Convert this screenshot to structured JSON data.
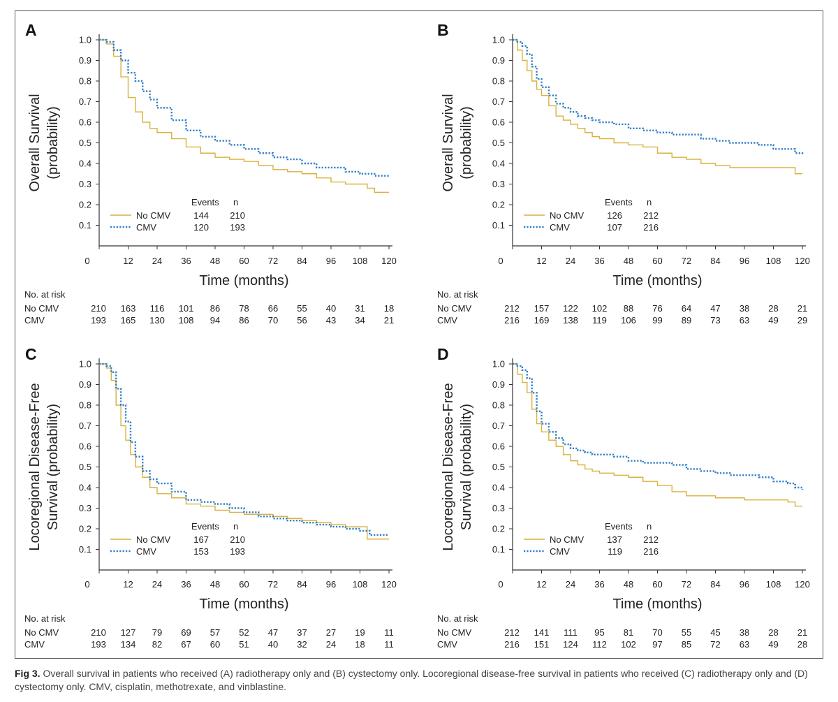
{
  "caption": {
    "label": "Fig 3.",
    "text": " Overall survival in patients who received (A) radiotherapy only and (B) cystectomy only. Locoregional disease-free survival in patients who received (C) radiotherapy only and (D) cystectomy only. CMV, cisplatin, methotrexate, and vinblastine."
  },
  "chart_data": [
    {
      "panel": "A",
      "type": "line",
      "xlabel": "Time (months)",
      "ylabel": [
        "Overall Survival",
        "(probability)"
      ],
      "xlim": [
        0,
        120
      ],
      "ylim": [
        0,
        1.0
      ],
      "xticks": [
        0,
        12,
        24,
        36,
        48,
        60,
        72,
        84,
        96,
        108,
        120
      ],
      "yticks": [
        0.1,
        0.2,
        0.3,
        0.4,
        0.5,
        0.6,
        0.7,
        0.8,
        0.9,
        1.0
      ],
      "legend_header": [
        "Events",
        "n"
      ],
      "series": [
        {
          "name": "No CMV",
          "color": "#d9b13c",
          "style": "solid",
          "events": 144,
          "n": 210,
          "x": [
            0,
            3,
            6,
            9,
            12,
            15,
            18,
            21,
            24,
            30,
            36,
            42,
            48,
            54,
            60,
            66,
            72,
            78,
            84,
            90,
            96,
            102,
            108,
            111,
            114,
            117,
            120
          ],
          "y": [
            1.0,
            0.98,
            0.92,
            0.82,
            0.72,
            0.65,
            0.6,
            0.57,
            0.55,
            0.52,
            0.48,
            0.45,
            0.43,
            0.42,
            0.41,
            0.39,
            0.37,
            0.36,
            0.35,
            0.33,
            0.31,
            0.3,
            0.3,
            0.28,
            0.26,
            0.26,
            0.26
          ]
        },
        {
          "name": "CMV",
          "color": "#2f7fc8",
          "style": "dotted",
          "events": 120,
          "n": 193,
          "x": [
            0,
            3,
            6,
            9,
            12,
            15,
            18,
            21,
            24,
            30,
            36,
            42,
            48,
            54,
            60,
            66,
            72,
            78,
            84,
            90,
            96,
            102,
            108,
            114,
            120
          ],
          "y": [
            1.0,
            0.99,
            0.95,
            0.9,
            0.84,
            0.8,
            0.75,
            0.71,
            0.67,
            0.61,
            0.56,
            0.53,
            0.51,
            0.49,
            0.47,
            0.45,
            0.43,
            0.42,
            0.4,
            0.38,
            0.38,
            0.36,
            0.35,
            0.34,
            0.34
          ]
        }
      ],
      "at_risk": {
        "header": "No. at risk",
        "rows": [
          {
            "label": "No CMV",
            "values": [
              "210",
              "163",
              "116",
              "101",
              "86",
              "78",
              "66",
              "55",
              "40",
              "31",
              "18"
            ]
          },
          {
            "label": "CMV",
            "values": [
              "193",
              "165",
              "130",
              "108",
              "94",
              "86",
              "70",
              "56",
              "43",
              "34",
              "21"
            ]
          }
        ]
      }
    },
    {
      "panel": "B",
      "type": "line",
      "xlabel": "Time (months)",
      "ylabel": [
        "Overall Survival",
        "(probability)"
      ],
      "xlim": [
        0,
        120
      ],
      "ylim": [
        0,
        1.0
      ],
      "xticks": [
        0,
        12,
        24,
        36,
        48,
        60,
        72,
        84,
        96,
        108,
        120
      ],
      "yticks": [
        0.1,
        0.2,
        0.3,
        0.4,
        0.5,
        0.6,
        0.7,
        0.8,
        0.9,
        1.0
      ],
      "legend_header": [
        "Events",
        "n"
      ],
      "series": [
        {
          "name": "No CMV",
          "color": "#d9b13c",
          "style": "solid",
          "events": 126,
          "n": 212,
          "x": [
            0,
            2,
            4,
            6,
            8,
            10,
            12,
            15,
            18,
            21,
            24,
            27,
            30,
            33,
            36,
            42,
            48,
            54,
            60,
            66,
            72,
            78,
            84,
            90,
            96,
            102,
            108,
            114,
            117,
            120
          ],
          "y": [
            1.0,
            0.95,
            0.9,
            0.85,
            0.8,
            0.76,
            0.73,
            0.68,
            0.63,
            0.61,
            0.59,
            0.57,
            0.55,
            0.53,
            0.52,
            0.5,
            0.49,
            0.48,
            0.45,
            0.43,
            0.42,
            0.4,
            0.39,
            0.38,
            0.38,
            0.38,
            0.38,
            0.38,
            0.35,
            0.35
          ]
        },
        {
          "name": "CMV",
          "color": "#2f7fc8",
          "style": "dotted",
          "events": 107,
          "n": 216,
          "x": [
            0,
            2,
            4,
            6,
            8,
            10,
            12,
            15,
            18,
            21,
            24,
            27,
            30,
            33,
            36,
            42,
            48,
            54,
            60,
            66,
            72,
            78,
            84,
            90,
            96,
            102,
            108,
            114,
            117,
            120
          ],
          "y": [
            1.0,
            0.99,
            0.97,
            0.93,
            0.87,
            0.81,
            0.77,
            0.73,
            0.69,
            0.67,
            0.65,
            0.63,
            0.62,
            0.61,
            0.6,
            0.59,
            0.57,
            0.56,
            0.55,
            0.54,
            0.54,
            0.52,
            0.51,
            0.5,
            0.5,
            0.49,
            0.47,
            0.47,
            0.45,
            0.44
          ]
        }
      ],
      "at_risk": {
        "header": "No. at risk",
        "rows": [
          {
            "label": "No CMV",
            "values": [
              "212",
              "157",
              "122",
              "102",
              "88",
              "76",
              "64",
              "47",
              "38",
              "28",
              "21"
            ]
          },
          {
            "label": "CMV",
            "values": [
              "216",
              "169",
              "138",
              "119",
              "106",
              "99",
              "89",
              "73",
              "63",
              "49",
              "29"
            ]
          }
        ]
      }
    },
    {
      "panel": "C",
      "type": "line",
      "xlabel": "Time (months)",
      "ylabel": [
        "Locoregional Disease-Free",
        "Survival (probability)"
      ],
      "xlim": [
        0,
        120
      ],
      "ylim": [
        0,
        1.0
      ],
      "xticks": [
        0,
        12,
        24,
        36,
        48,
        60,
        72,
        84,
        96,
        108,
        120
      ],
      "yticks": [
        0.1,
        0.2,
        0.3,
        0.4,
        0.5,
        0.6,
        0.7,
        0.8,
        0.9,
        1.0
      ],
      "legend_header": [
        "Events",
        "n"
      ],
      "series": [
        {
          "name": "No CMV",
          "color": "#d9b13c",
          "style": "solid",
          "events": 167,
          "n": 210,
          "x": [
            0,
            3,
            5,
            7,
            9,
            11,
            13,
            15,
            18,
            21,
            24,
            30,
            36,
            42,
            48,
            54,
            60,
            66,
            72,
            78,
            84,
            90,
            96,
            102,
            108,
            110,
            111,
            115,
            120
          ],
          "y": [
            1.0,
            0.98,
            0.92,
            0.8,
            0.7,
            0.63,
            0.56,
            0.5,
            0.45,
            0.4,
            0.37,
            0.35,
            0.32,
            0.31,
            0.29,
            0.28,
            0.27,
            0.27,
            0.26,
            0.25,
            0.24,
            0.23,
            0.22,
            0.21,
            0.21,
            0.21,
            0.15,
            0.15,
            0.15
          ]
        },
        {
          "name": "CMV",
          "color": "#2f7fc8",
          "style": "dotted",
          "events": 153,
          "n": 193,
          "x": [
            0,
            3,
            5,
            7,
            9,
            11,
            13,
            15,
            18,
            21,
            24,
            30,
            36,
            42,
            48,
            54,
            60,
            66,
            72,
            78,
            84,
            90,
            96,
            102,
            108,
            112,
            120
          ],
          "y": [
            1.0,
            0.99,
            0.96,
            0.88,
            0.8,
            0.72,
            0.62,
            0.55,
            0.48,
            0.44,
            0.42,
            0.38,
            0.34,
            0.33,
            0.32,
            0.3,
            0.28,
            0.26,
            0.25,
            0.24,
            0.23,
            0.22,
            0.21,
            0.2,
            0.19,
            0.17,
            0.17
          ]
        }
      ],
      "at_risk": {
        "header": "No. at risk",
        "rows": [
          {
            "label": "No CMV",
            "values": [
              "210",
              "127",
              "79",
              "69",
              "57",
              "52",
              "47",
              "37",
              "27",
              "19",
              "11"
            ]
          },
          {
            "label": "CMV",
            "values": [
              "193",
              "134",
              "82",
              "67",
              "60",
              "51",
              "40",
              "32",
              "24",
              "18",
              "11"
            ]
          }
        ]
      }
    },
    {
      "panel": "D",
      "type": "line",
      "xlabel": "Time (months)",
      "ylabel": [
        "Locoregional Disease-Free",
        "Survival (probability)"
      ],
      "xlim": [
        0,
        120
      ],
      "ylim": [
        0,
        1.0
      ],
      "xticks": [
        0,
        12,
        24,
        36,
        48,
        60,
        72,
        84,
        96,
        108,
        120
      ],
      "yticks": [
        0.1,
        0.2,
        0.3,
        0.4,
        0.5,
        0.6,
        0.7,
        0.8,
        0.9,
        1.0
      ],
      "legend_header": [
        "Events",
        "n"
      ],
      "series": [
        {
          "name": "No CMV",
          "color": "#d9b13c",
          "style": "solid",
          "events": 137,
          "n": 212,
          "x": [
            0,
            2,
            4,
            6,
            8,
            10,
            12,
            15,
            18,
            21,
            24,
            27,
            30,
            33,
            36,
            42,
            48,
            54,
            60,
            66,
            72,
            78,
            84,
            90,
            96,
            102,
            108,
            114,
            117,
            120
          ],
          "y": [
            1.0,
            0.95,
            0.91,
            0.86,
            0.78,
            0.71,
            0.67,
            0.63,
            0.6,
            0.56,
            0.53,
            0.51,
            0.49,
            0.48,
            0.47,
            0.46,
            0.45,
            0.43,
            0.41,
            0.38,
            0.36,
            0.36,
            0.35,
            0.35,
            0.34,
            0.34,
            0.34,
            0.33,
            0.31,
            0.31
          ]
        },
        {
          "name": "CMV",
          "color": "#2f7fc8",
          "style": "dotted",
          "events": 119,
          "n": 216,
          "x": [
            0,
            2,
            4,
            6,
            8,
            10,
            12,
            15,
            18,
            21,
            24,
            27,
            30,
            33,
            36,
            42,
            48,
            54,
            60,
            66,
            72,
            78,
            84,
            90,
            96,
            102,
            108,
            114,
            117,
            120
          ],
          "y": [
            1.0,
            0.99,
            0.97,
            0.93,
            0.86,
            0.77,
            0.71,
            0.67,
            0.64,
            0.61,
            0.59,
            0.58,
            0.57,
            0.56,
            0.56,
            0.55,
            0.53,
            0.52,
            0.52,
            0.51,
            0.49,
            0.48,
            0.47,
            0.46,
            0.46,
            0.45,
            0.43,
            0.42,
            0.4,
            0.39
          ]
        }
      ],
      "at_risk": {
        "header": "No. at risk",
        "rows": [
          {
            "label": "No CMV",
            "values": [
              "212",
              "141",
              "111",
              "95",
              "81",
              "70",
              "55",
              "45",
              "38",
              "28",
              "21"
            ]
          },
          {
            "label": "CMV",
            "values": [
              "216",
              "151",
              "124",
              "112",
              "102",
              "97",
              "85",
              "72",
              "63",
              "49",
              "28"
            ]
          }
        ]
      }
    }
  ]
}
